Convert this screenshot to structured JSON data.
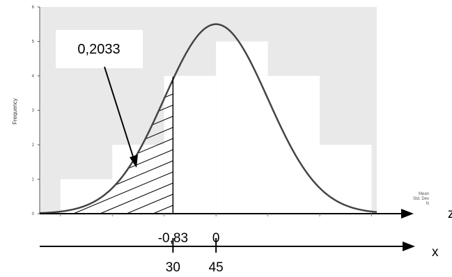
{
  "chart_data": {
    "type": "bar",
    "ylabel": "Frequency",
    "ylim": [
      0,
      6
    ],
    "y_ticks": [
      "0",
      "1",
      "2",
      "3",
      "4",
      "5",
      "6"
    ],
    "histogram": {
      "bin_edges": [
        -3,
        -2,
        -1,
        0,
        1,
        2,
        3
      ],
      "counts": [
        1,
        2,
        4,
        5,
        4,
        2
      ]
    },
    "normal_curve": {
      "mean": 0,
      "sd": 1,
      "peak": 5.5
    },
    "shaded_region": {
      "from": -3,
      "to": -0.83
    },
    "legend": [
      "Mean",
      "Std. Dev",
      "N"
    ],
    "callout": "0,2033",
    "z_axis": {
      "label": "z",
      "ticks": [
        {
          "value": -0.83,
          "label": "-0,83"
        },
        {
          "value": 0,
          "label": "0"
        }
      ]
    },
    "x_axis": {
      "label": "x",
      "ticks": [
        {
          "value": -0.83,
          "label": "30"
        },
        {
          "value": 0,
          "label": "45"
        }
      ]
    }
  }
}
